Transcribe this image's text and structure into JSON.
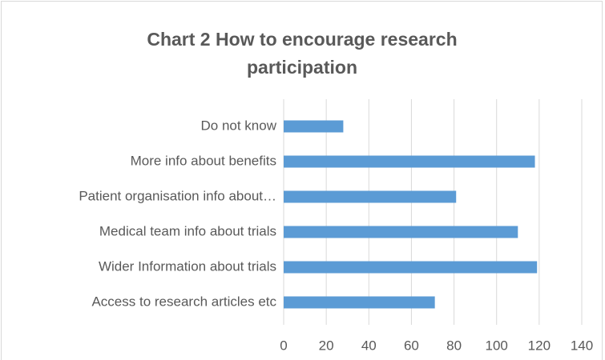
{
  "chart_data": {
    "type": "bar",
    "orientation": "horizontal",
    "title": "Chart 2 How to encourage research participation",
    "categories": [
      "Do not know",
      "More info about benefits",
      "Patient organisation info about…",
      "Medical team info about trials",
      "Wider Information about trials",
      "Access to research articles etc"
    ],
    "values": [
      28,
      118,
      81,
      110,
      119,
      71
    ],
    "color": "#5b9bd5",
    "xlim": [
      0,
      140
    ],
    "xticks": [
      0,
      20,
      40,
      60,
      80,
      100,
      120,
      140
    ],
    "grid": true
  }
}
